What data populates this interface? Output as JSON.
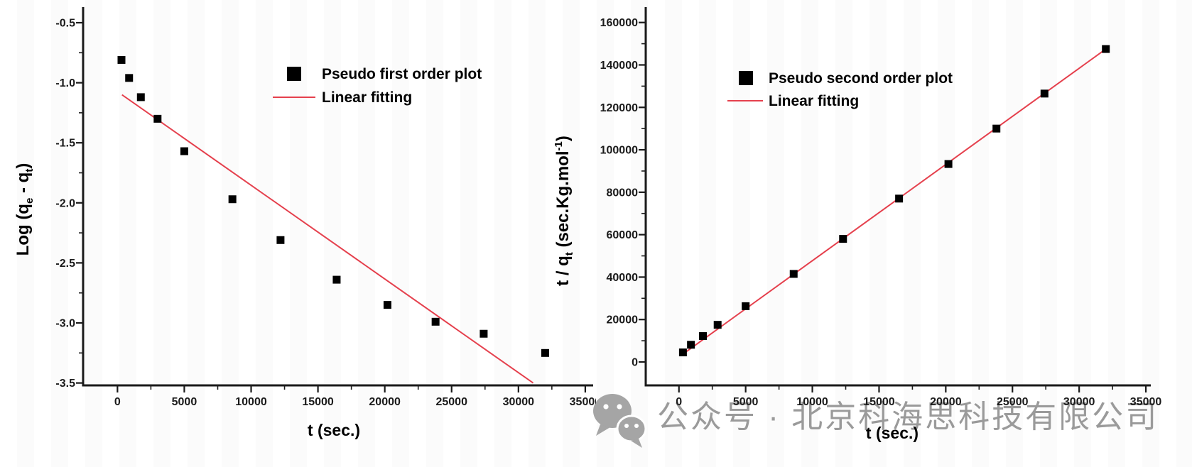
{
  "watermark": {
    "text": "公众号 · 北京科海思科技有限公司",
    "icon": "wechat-logo",
    "color": "#9a9a9a"
  },
  "chart_data": [
    {
      "id": "pseudo-first-order",
      "type": "scatter",
      "title": "",
      "xlabel": "t (sec.)",
      "ylabel": "Log (qe - qt)",
      "ylabel_rich": [
        {
          "t": "Log (q"
        },
        {
          "t": "e",
          "s": "sub"
        },
        {
          "t": " - q"
        },
        {
          "t": "t",
          "s": "sub"
        },
        {
          "t": ")"
        }
      ],
      "xlim": [
        -2570,
        35590
      ],
      "ylim": [
        -3.52,
        -0.37
      ],
      "grid": false,
      "legend_position": "upper-right-inside",
      "x_ticks": [
        {
          "v": 0,
          "l": "0"
        },
        {
          "v": 5000,
          "l": "5000"
        },
        {
          "v": 10000,
          "l": "10000"
        },
        {
          "v": 15000,
          "l": "15000"
        },
        {
          "v": 20000,
          "l": "20000"
        },
        {
          "v": 25000,
          "l": "25000"
        },
        {
          "v": 30000,
          "l": "30000"
        },
        {
          "v": 35000,
          "l": "35000"
        }
      ],
      "y_ticks": [
        {
          "v": -0.5,
          "l": "-0.5"
        },
        {
          "v": -1.0,
          "l": "-1.0"
        },
        {
          "v": -1.5,
          "l": "-1.5"
        },
        {
          "v": -2.0,
          "l": "-2.0"
        },
        {
          "v": -2.5,
          "l": "-2.5"
        },
        {
          "v": -3.0,
          "l": "-3.0"
        },
        {
          "v": -3.5,
          "l": "-3.5"
        }
      ],
      "legend": [
        {
          "label": "Pseudo first order plot",
          "swatch": "square",
          "color": "#000000"
        },
        {
          "label": "Linear fitting",
          "swatch": "line",
          "color": "#e5404d"
        }
      ],
      "series": [
        {
          "name": "Pseudo first order plot",
          "kind": "scatter",
          "marker": "square",
          "color": "#000000",
          "points": [
            [
              300,
              -0.81
            ],
            [
              870,
              -0.96
            ],
            [
              1750,
              -1.12
            ],
            [
              3000,
              -1.3
            ],
            [
              5000,
              -1.57
            ],
            [
              8600,
              -1.97
            ],
            [
              12200,
              -2.31
            ],
            [
              16400,
              -2.64
            ],
            [
              20200,
              -2.85
            ],
            [
              23800,
              -2.99
            ],
            [
              27400,
              -3.09
            ],
            [
              32000,
              -3.25
            ]
          ]
        },
        {
          "name": "Linear fitting",
          "kind": "line",
          "color": "#e5404d",
          "points": [
            [
              340,
              -1.1
            ],
            [
              31100,
              -3.5
            ]
          ]
        }
      ]
    },
    {
      "id": "pseudo-second-order",
      "type": "scatter",
      "title": "",
      "xlabel": "t (sec.)",
      "ylabel": "t / qt (sec.Kg.mol-1)",
      "ylabel_rich": [
        {
          "t": "t / q"
        },
        {
          "t": "t",
          "s": "sub"
        },
        {
          "t": " (sec.Kg.mol"
        },
        {
          "t": "-1",
          "s": "sup"
        },
        {
          "t": ")"
        }
      ],
      "xlim": [
        -2490,
        35370
      ],
      "ylim": [
        -11040,
        167260
      ],
      "grid": false,
      "legend_position": "upper-left-inside",
      "x_ticks": [
        {
          "v": 0,
          "l": "0"
        },
        {
          "v": 5000,
          "l": "5000"
        },
        {
          "v": 10000,
          "l": "10000"
        },
        {
          "v": 15000,
          "l": "15000"
        },
        {
          "v": 20000,
          "l": "20000"
        },
        {
          "v": 25000,
          "l": "25000"
        },
        {
          "v": 30000,
          "l": "30000"
        },
        {
          "v": 35000,
          "l": "35000"
        }
      ],
      "y_ticks": [
        {
          "v": 0,
          "l": "0"
        },
        {
          "v": 20000,
          "l": "20000"
        },
        {
          "v": 40000,
          "l": "40000"
        },
        {
          "v": 60000,
          "l": "60000"
        },
        {
          "v": 80000,
          "l": "80000"
        },
        {
          "v": 100000,
          "l": "100000"
        },
        {
          "v": 120000,
          "l": "120000"
        },
        {
          "v": 140000,
          "l": "140000"
        },
        {
          "v": 160000,
          "l": "160000"
        }
      ],
      "legend": [
        {
          "label": "Pseudo second order plot",
          "swatch": "square",
          "color": "#000000"
        },
        {
          "label": "Linear fitting",
          "swatch": "line",
          "color": "#e5404d"
        }
      ],
      "series": [
        {
          "name": "Pseudo second order plot",
          "kind": "scatter",
          "marker": "square",
          "color": "#000000",
          "points": [
            [
              300,
              4500
            ],
            [
              900,
              8100
            ],
            [
              1800,
              12200
            ],
            [
              2900,
              17500
            ],
            [
              5000,
              26300
            ],
            [
              8600,
              41500
            ],
            [
              12300,
              58000
            ],
            [
              16500,
              77000
            ],
            [
              20200,
              93300
            ],
            [
              23800,
              110000
            ],
            [
              27400,
              126500
            ],
            [
              32000,
              147500
            ]
          ]
        },
        {
          "name": "Linear fitting",
          "kind": "line",
          "color": "#e5404d",
          "points": [
            [
              250,
              3500
            ],
            [
              32000,
              147500
            ]
          ]
        }
      ]
    }
  ]
}
